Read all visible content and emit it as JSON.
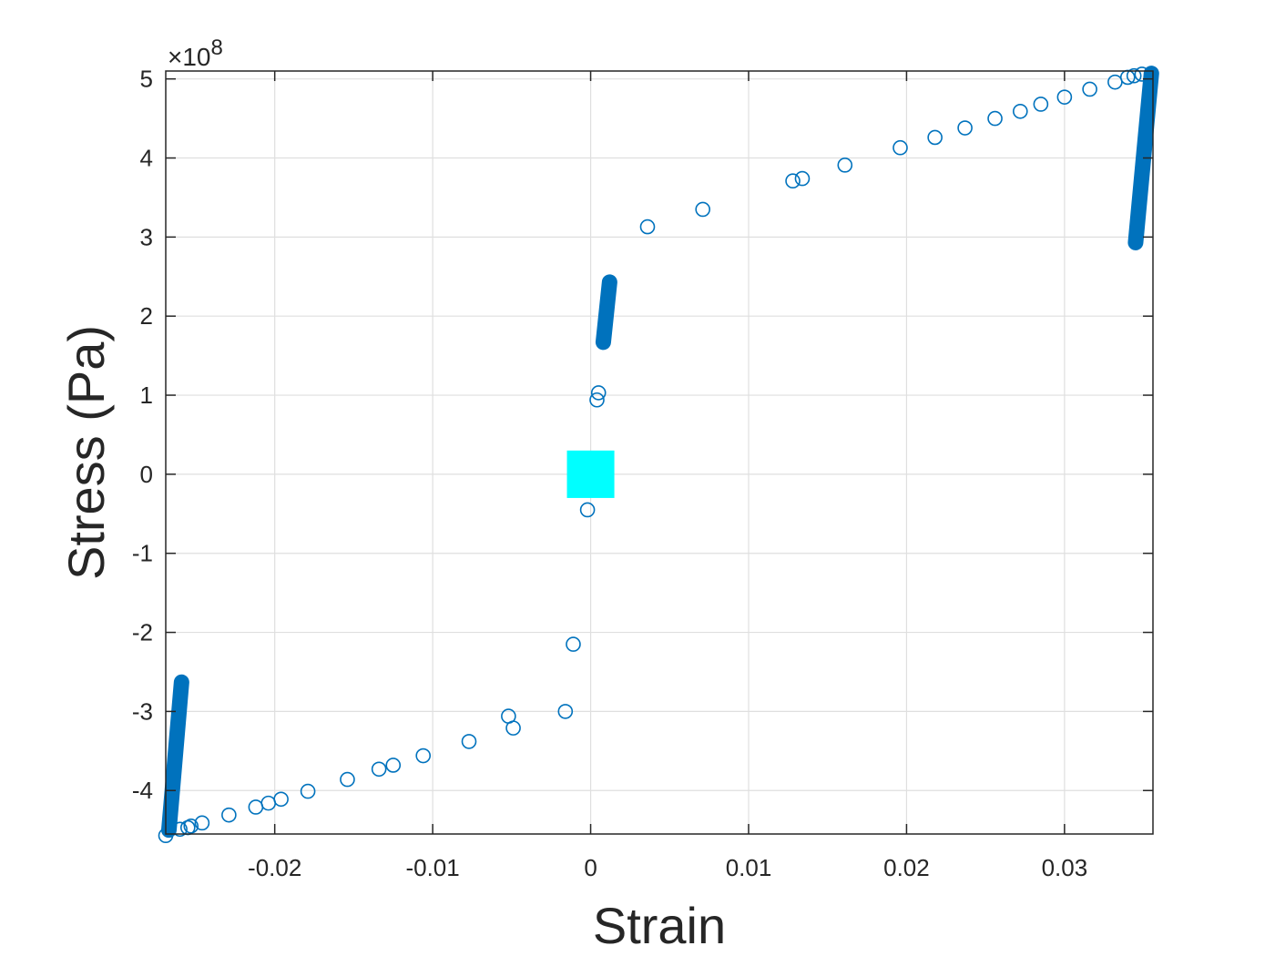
{
  "chart_data": {
    "type": "scatter",
    "title": "",
    "xlabel": "Strain",
    "ylabel": "Stress (Pa)",
    "y_exponent_label": "×10",
    "y_exponent_power": "8",
    "y_scale_factor": 100000000,
    "xlim": [
      -0.0269,
      0.0356
    ],
    "ylim": [
      -4.55,
      5.1
    ],
    "x_ticks": [
      -0.02,
      -0.01,
      0,
      0.01,
      0.02,
      0.03
    ],
    "x_tick_labels": [
      "-0.02",
      "-0.01",
      "0",
      "0.01",
      "0.02",
      "0.03"
    ],
    "y_ticks": [
      -4,
      -3,
      -2,
      -1,
      0,
      1,
      2,
      3,
      4,
      5
    ],
    "y_tick_labels": [
      "-4",
      "-3",
      "-2",
      "-1",
      "0",
      "1",
      "2",
      "3",
      "4",
      "5"
    ],
    "grid": true,
    "legend": "none",
    "marker_color": "#0072BD",
    "highlight_color": "#00FFFF",
    "points": [
      {
        "x": -0.0269,
        "y": -4.57
      },
      {
        "x": -0.026,
        "y": -4.49
      },
      {
        "x": -0.0255,
        "y": -4.47
      },
      {
        "x": -0.0253,
        "y": -4.45
      },
      {
        "x": -0.0246,
        "y": -4.41
      },
      {
        "x": -0.0229,
        "y": -4.31
      },
      {
        "x": -0.0212,
        "y": -4.21
      },
      {
        "x": -0.0204,
        "y": -4.16
      },
      {
        "x": -0.0196,
        "y": -4.11
      },
      {
        "x": -0.0179,
        "y": -4.01
      },
      {
        "x": -0.0154,
        "y": -3.86
      },
      {
        "x": -0.0134,
        "y": -3.73
      },
      {
        "x": -0.0125,
        "y": -3.68
      },
      {
        "x": -0.0106,
        "y": -3.56
      },
      {
        "x": -0.0077,
        "y": -3.38
      },
      {
        "x": -0.0052,
        "y": -3.06
      },
      {
        "x": -0.0049,
        "y": -3.21
      },
      {
        "x": -0.0016,
        "y": -3.0
      },
      {
        "x": -0.0011,
        "y": -2.15
      },
      {
        "x": -0.0002,
        "y": -0.45
      },
      {
        "x": 0.0004,
        "y": 0.94
      },
      {
        "x": 0.0005,
        "y": 1.03
      },
      {
        "x": 0.0036,
        "y": 3.13
      },
      {
        "x": 0.0071,
        "y": 3.35
      },
      {
        "x": 0.0128,
        "y": 3.71
      },
      {
        "x": 0.0134,
        "y": 3.74
      },
      {
        "x": 0.0161,
        "y": 3.91
      },
      {
        "x": 0.0196,
        "y": 4.13
      },
      {
        "x": 0.0218,
        "y": 4.26
      },
      {
        "x": 0.0237,
        "y": 4.38
      },
      {
        "x": 0.0256,
        "y": 4.5
      },
      {
        "x": 0.0272,
        "y": 4.59
      },
      {
        "x": 0.0285,
        "y": 4.68
      },
      {
        "x": 0.03,
        "y": 4.77
      },
      {
        "x": 0.0316,
        "y": 4.87
      },
      {
        "x": 0.0332,
        "y": 4.96
      },
      {
        "x": 0.034,
        "y": 5.02
      },
      {
        "x": 0.0344,
        "y": 5.04
      },
      {
        "x": 0.0349,
        "y": 5.06
      }
    ],
    "dense_segments": [
      {
        "x1": -0.0267,
        "y1": -4.5,
        "x2": -0.0259,
        "y2": -2.63
      },
      {
        "x1": 0.0008,
        "y1": 1.67,
        "x2": 0.0012,
        "y2": 2.43
      },
      {
        "x1": 0.0345,
        "y1": 2.93,
        "x2": 0.0355,
        "y2": 5.07
      }
    ],
    "highlight_box": {
      "x1": -0.0015,
      "y1": -0.3,
      "x2": 0.0015,
      "y2": 0.3
    }
  }
}
